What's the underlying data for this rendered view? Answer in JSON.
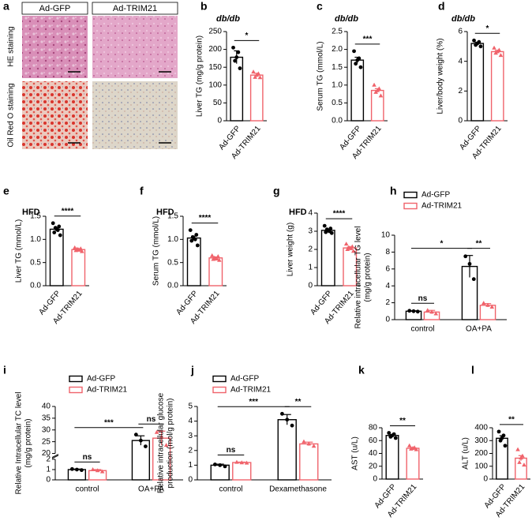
{
  "panel_a": {
    "label": "a",
    "columns": [
      "Ad-GFP",
      "Ad-TRIM21"
    ],
    "rows": [
      "HE staining",
      "Oil Red O staining"
    ]
  },
  "chart_data": [
    {
      "label": "b",
      "type": "bar",
      "subtitle": "db/db",
      "ylabel": "Liver TG  (mg/g protein)",
      "categories": [
        "Ad-GFP",
        "Ad-TRIM21"
      ],
      "values": [
        178,
        128
      ],
      "errors": [
        18,
        5
      ],
      "points": [
        [
          205,
          192,
          178,
          168,
          147
        ],
        [
          137,
          132,
          128,
          122,
          121
        ]
      ],
      "colors": [
        "#000000",
        "#f0636b"
      ],
      "markers": [
        "circle",
        "triangle"
      ],
      "ylim": [
        0,
        250
      ],
      "yticks": [
        0,
        50,
        100,
        150,
        200,
        250
      ],
      "significance": [
        {
          "text": "*",
          "from": 0,
          "to": 1
        }
      ]
    },
    {
      "label": "c",
      "type": "bar",
      "subtitle": "db/db",
      "ylabel": "Serum TG  (mmol/L)",
      "categories": [
        "Ad-GFP",
        "Ad-TRIM21"
      ],
      "values": [
        1.7,
        0.85
      ],
      "errors": [
        0.08,
        0.05
      ],
      "points": [
        [
          1.95,
          1.75,
          1.7,
          1.6,
          1.5
        ],
        [
          1.0,
          0.9,
          0.85,
          0.8,
          0.7
        ]
      ],
      "colors": [
        "#000000",
        "#f0636b"
      ],
      "markers": [
        "circle",
        "triangle"
      ],
      "ylim": [
        0,
        2.5
      ],
      "yticks": [
        {
          "value": 0,
          "label": "0.0"
        },
        {
          "value": 0.5,
          "label": "0.5"
        },
        {
          "value": 1,
          "label": "1.0"
        },
        {
          "value": 1.5,
          "label": "1.5"
        },
        {
          "value": 2,
          "label": "2.0"
        },
        {
          "value": 2.5,
          "label": "2.5"
        }
      ],
      "significance": [
        {
          "text": "***",
          "from": 0,
          "to": 1
        }
      ]
    },
    {
      "label": "d",
      "type": "bar",
      "subtitle": "db/db",
      "ylabel": "Liver/body weight  (%)",
      "categories": [
        "Ad-GFP",
        "Ad-TRIM21"
      ],
      "values": [
        5.2,
        4.65
      ],
      "errors": [
        0.08,
        0.08
      ],
      "points": [
        [
          5.4,
          5.3,
          5.2,
          5.1,
          5.0
        ],
        [
          4.9,
          4.75,
          4.65,
          4.55,
          4.4
        ]
      ],
      "colors": [
        "#000000",
        "#f0636b"
      ],
      "markers": [
        "circle",
        "triangle"
      ],
      "ylim": [
        0,
        6
      ],
      "yticks": [
        0,
        2,
        4,
        6
      ],
      "significance": [
        {
          "text": "*",
          "from": 0,
          "to": 1
        }
      ]
    },
    {
      "label": "e",
      "type": "bar",
      "subtitle": "HFD",
      "ylabel": "Liver TG  (mmol/L)",
      "categories": [
        "Ad-GFP",
        "Ad-TRIM21"
      ],
      "values": [
        1.22,
        0.78
      ],
      "errors": [
        0.03,
        0.01
      ],
      "points": [
        [
          1.35,
          1.28,
          1.25,
          1.22,
          1.2,
          1.15,
          1.09
        ],
        [
          0.82,
          0.8,
          0.79,
          0.78,
          0.77,
          0.76,
          0.74
        ]
      ],
      "colors": [
        "#000000",
        "#f0636b"
      ],
      "markers": [
        "circle",
        "triangle"
      ],
      "ylim": [
        0,
        1.5
      ],
      "yticks": [
        {
          "value": 0,
          "label": "0.0"
        },
        {
          "value": 0.5,
          "label": "0.5"
        },
        {
          "value": 1,
          "label": "1.0"
        },
        {
          "value": 1.5,
          "label": "1.5"
        }
      ],
      "significance": [
        {
          "text": "****",
          "from": 0,
          "to": 1
        }
      ]
    },
    {
      "label": "f",
      "type": "bar",
      "subtitle": "HFD",
      "ylabel": "Serum TG  (mmol/L)",
      "categories": [
        "Ad-GFP",
        "Ad-TRIM21"
      ],
      "values": [
        1.03,
        0.6
      ],
      "errors": [
        0.04,
        0.02
      ],
      "points": [
        [
          1.2,
          1.1,
          1.05,
          1.02,
          1.0,
          0.97,
          0.87
        ],
        [
          0.65,
          0.63,
          0.6,
          0.59,
          0.58,
          0.57,
          0.55
        ]
      ],
      "colors": [
        "#000000",
        "#f0636b"
      ],
      "markers": [
        "circle",
        "triangle"
      ],
      "ylim": [
        0,
        1.5
      ],
      "yticks": [
        {
          "value": 0,
          "label": "0.0"
        },
        {
          "value": 0.5,
          "label": "0.5"
        },
        {
          "value": 1,
          "label": "1.0"
        },
        {
          "value": 1.5,
          "label": "1.5"
        }
      ],
      "significance": [
        {
          "text": "****",
          "from": 0,
          "to": 1
        }
      ]
    },
    {
      "label": "g",
      "type": "bar",
      "subtitle": "HFD",
      "ylabel": "Liver weight  (g)",
      "categories": [
        "Ad-GFP",
        "Ad-TRIM21"
      ],
      "values": [
        3.05,
        2.08
      ],
      "errors": [
        0.05,
        0.05
      ],
      "points": [
        [
          3.3,
          3.15,
          3.1,
          3.05,
          3.0,
          2.95,
          2.9
        ],
        [
          2.3,
          2.15,
          2.1,
          2.08,
          2.05,
          2.0,
          1.9
        ]
      ],
      "colors": [
        "#000000",
        "#f0636b"
      ],
      "markers": [
        "circle",
        "triangle"
      ],
      "ylim": [
        0,
        4
      ],
      "yticks": [
        0,
        1,
        2,
        3,
        4
      ],
      "significance": [
        {
          "text": "****",
          "from": 0,
          "to": 1
        }
      ]
    },
    {
      "label": "h",
      "type": "grouped_bar",
      "ylabel": [
        "Relative intracellular TG level",
        "(mg/g protein)"
      ],
      "categories": [
        "control",
        "OA+PA"
      ],
      "series": [
        {
          "name": "Ad-GFP",
          "color": "#000000",
          "marker": "circle",
          "values": [
            1.0,
            6.3
          ],
          "errors": [
            0.05,
            1.3
          ],
          "points": [
            [
              1.05,
              1.0,
              0.95
            ],
            [
              7.5,
              6.6,
              4.8
            ]
          ]
        },
        {
          "name": "Ad-TRIM21",
          "color": "#f0636b",
          "marker": "triangle",
          "values": [
            0.9,
            1.7
          ],
          "errors": [
            0.2,
            0.2
          ],
          "points": [
            [
              1.1,
              0.9,
              0.7
            ],
            [
              1.95,
              1.7,
              1.5
            ]
          ]
        }
      ],
      "ylim": [
        0,
        10
      ],
      "yticks": [
        0,
        2,
        4,
        6,
        8,
        10
      ],
      "significance": [
        {
          "text": "ns",
          "from": [
            0,
            0
          ],
          "to": [
            1,
            0
          ]
        },
        {
          "text": "*",
          "from": [
            0,
            0
          ],
          "to": [
            0,
            1
          ]
        },
        {
          "text": "**",
          "from": [
            0,
            1
          ],
          "to": [
            1,
            1
          ]
        }
      ]
    },
    {
      "label": "i",
      "type": "grouped_bar",
      "ylabel": [
        "Relative Intracellular TC level",
        "(mg/g protein)"
      ],
      "categories": [
        "control",
        "OA+PA"
      ],
      "series": [
        {
          "name": "Ad-GFP",
          "color": "#000000",
          "marker": "circle",
          "values": [
            1.0,
            25.5
          ],
          "errors": [
            0.05,
            2.0
          ],
          "points": [
            [
              1.05,
              1.0,
              0.95
            ],
            [
              28,
              25.5,
              23
            ]
          ]
        },
        {
          "name": "Ad-TRIM21",
          "color": "#f0636b",
          "marker": "triangle",
          "values": [
            0.9,
            26.5
          ],
          "errors": [
            0.1,
            3.0
          ],
          "points": [
            [
              1.0,
              0.9,
              0.8
            ],
            [
              29,
              27,
              23.5
            ]
          ]
        }
      ],
      "ylim": [
        0,
        40
      ],
      "axis_break": [
        2,
        20
      ],
      "yticks": [
        0,
        1,
        2,
        20,
        25,
        30,
        35,
        40
      ],
      "significance": [
        {
          "text": "ns",
          "from": [
            0,
            0
          ],
          "to": [
            1,
            0
          ]
        },
        {
          "text": "***",
          "from": [
            0,
            0
          ],
          "to": [
            0,
            1
          ]
        },
        {
          "text": "ns",
          "from": [
            0,
            1
          ],
          "to": [
            1,
            1
          ]
        }
      ]
    },
    {
      "label": "j",
      "type": "grouped_bar",
      "ylabel": [
        "Relative intracellular glucose",
        "production (mol/g protein)"
      ],
      "categories": [
        "control",
        "Dexamethasone"
      ],
      "series": [
        {
          "name": "Ad-GFP",
          "color": "#000000",
          "marker": "circle",
          "values": [
            1.0,
            4.1
          ],
          "errors": [
            0.07,
            0.35
          ],
          "points": [
            [
              1.05,
              1.0,
              0.92
            ],
            [
              4.5,
              4.1,
              3.7
            ]
          ]
        },
        {
          "name": "Ad-TRIM21",
          "color": "#f0636b",
          "marker": "triangle",
          "values": [
            1.18,
            2.45
          ],
          "errors": [
            0.03,
            0.12
          ],
          "points": [
            [
              1.2,
              1.17,
              1.15
            ],
            [
              2.6,
              2.45,
              2.3
            ]
          ]
        }
      ],
      "ylim": [
        0,
        5
      ],
      "yticks": [
        0,
        1,
        2,
        3,
        4,
        5
      ],
      "significance": [
        {
          "text": "ns",
          "from": [
            0,
            0
          ],
          "to": [
            1,
            0
          ]
        },
        {
          "text": "***",
          "from": [
            0,
            0
          ],
          "to": [
            0,
            1
          ]
        },
        {
          "text": "**",
          "from": [
            0,
            1
          ],
          "to": [
            1,
            1
          ]
        }
      ]
    },
    {
      "label": "k",
      "type": "bar",
      "ylabel": "AST  (u/L)",
      "categories": [
        "Ad-GFP",
        "Ad-TRIM21"
      ],
      "values": [
        68,
        48
      ],
      "errors": [
        1.5,
        1.2
      ],
      "points": [
        [
          72,
          70,
          68,
          66,
          64
        ],
        [
          52,
          49,
          48,
          47,
          46
        ]
      ],
      "colors": [
        "#000000",
        "#f0636b"
      ],
      "markers": [
        "circle",
        "triangle"
      ],
      "ylim": [
        0,
        80
      ],
      "yticks": [
        0,
        20,
        40,
        60,
        80
      ],
      "significance": [
        {
          "text": "**",
          "from": 0,
          "to": 1
        }
      ]
    },
    {
      "label": "l",
      "type": "bar",
      "ylabel": "ALT  (u/L)",
      "categories": [
        "Ad-GFP",
        "Ad-TRIM21"
      ],
      "values": [
        318,
        163
      ],
      "errors": [
        20,
        20
      ],
      "points": [
        [
          370,
          340,
          320,
          300,
          260
        ],
        [
          230,
          180,
          165,
          130,
          110
        ]
      ],
      "colors": [
        "#000000",
        "#f0636b"
      ],
      "markers": [
        "circle",
        "triangle"
      ],
      "ylim": [
        0,
        400
      ],
      "yticks": [
        0,
        100,
        200,
        300,
        400
      ],
      "significance": [
        {
          "text": "**",
          "from": 0,
          "to": 1
        }
      ]
    }
  ]
}
